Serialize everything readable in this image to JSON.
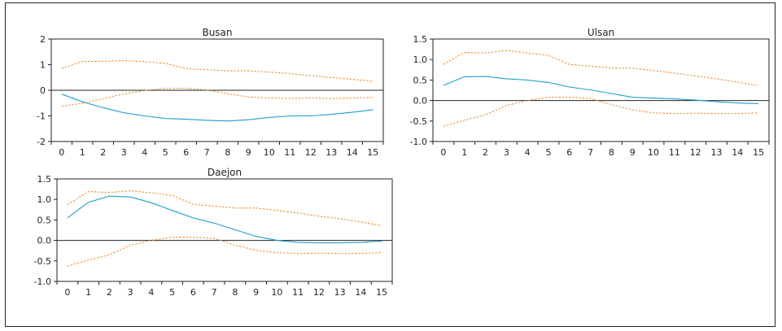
{
  "colors": {
    "mean_line": "#1a9fd0",
    "band_line": "#ef8a2b",
    "axis": "#222222",
    "zero_line": "#222222"
  },
  "chart_data": [
    {
      "type": "line",
      "title": "Busan",
      "x": [
        0,
        1,
        2,
        3,
        4,
        5,
        6,
        7,
        8,
        9,
        10,
        11,
        12,
        13,
        14,
        15
      ],
      "ylim": [
        -2,
        2
      ],
      "yticks": [
        -2,
        -1,
        0,
        1,
        2
      ],
      "ytick_labels": [
        "-2",
        "-1",
        "0",
        "1",
        "2"
      ],
      "xticks": [
        "0",
        "1",
        "2",
        "3",
        "4",
        "5",
        "6",
        "7",
        "8",
        "9",
        "10",
        "11",
        "12",
        "13",
        "14",
        "15"
      ],
      "zero_line": true,
      "series": [
        {
          "role": "mean",
          "values": [
            -0.15,
            -0.45,
            -0.68,
            -0.88,
            -1.0,
            -1.1,
            -1.13,
            -1.17,
            -1.2,
            -1.15,
            -1.06,
            -1.0,
            -1.0,
            -0.94,
            -0.86,
            -0.76
          ]
        },
        {
          "role": "upper",
          "values": [
            0.85,
            1.13,
            1.13,
            1.16,
            1.12,
            1.05,
            0.84,
            0.8,
            0.76,
            0.76,
            0.71,
            0.65,
            0.57,
            0.5,
            0.43,
            0.35
          ]
        },
        {
          "role": "lower",
          "values": [
            -0.63,
            -0.5,
            -0.33,
            -0.14,
            -0.01,
            0.08,
            0.08,
            0.01,
            -0.14,
            -0.26,
            -0.3,
            -0.32,
            -0.3,
            -0.32,
            -0.3,
            -0.28
          ]
        }
      ]
    },
    {
      "type": "line",
      "title": "Ulsan",
      "x": [
        0,
        1,
        2,
        3,
        4,
        5,
        6,
        7,
        8,
        9,
        10,
        11,
        12,
        13,
        14,
        15
      ],
      "ylim": [
        -1.0,
        1.5
      ],
      "yticks": [
        -1.0,
        -0.5,
        0.0,
        0.5,
        1.0,
        1.5
      ],
      "ytick_labels": [
        "-1.0",
        "-0.5",
        "0.0",
        "0.5",
        "1.0",
        "1.5"
      ],
      "xticks": [
        "0",
        "1",
        "2",
        "3",
        "4",
        "5",
        "6",
        "7",
        "8",
        "9",
        "10",
        "11",
        "12",
        "13",
        "14",
        "15"
      ],
      "zero_line": true,
      "series": [
        {
          "role": "mean",
          "values": [
            0.37,
            0.58,
            0.59,
            0.53,
            0.5,
            0.44,
            0.33,
            0.26,
            0.17,
            0.08,
            0.06,
            0.04,
            0.01,
            -0.03,
            -0.06,
            -0.08
          ]
        },
        {
          "role": "upper",
          "values": [
            0.88,
            1.17,
            1.16,
            1.22,
            1.16,
            1.1,
            0.88,
            0.84,
            0.79,
            0.79,
            0.73,
            0.67,
            0.6,
            0.53,
            0.45,
            0.36
          ]
        },
        {
          "role": "lower",
          "values": [
            -0.63,
            -0.48,
            -0.35,
            -0.12,
            0.0,
            0.08,
            0.08,
            0.05,
            -0.1,
            -0.23,
            -0.3,
            -0.32,
            -0.31,
            -0.32,
            -0.32,
            -0.3
          ]
        }
      ]
    },
    {
      "type": "line",
      "title": "Daejon",
      "x": [
        0,
        1,
        2,
        3,
        4,
        5,
        6,
        7,
        8,
        9,
        10,
        11,
        12,
        13,
        14,
        15
      ],
      "ylim": [
        -1.0,
        1.5
      ],
      "yticks": [
        -1.0,
        -0.5,
        0.0,
        0.5,
        1.0,
        1.5
      ],
      "ytick_labels": [
        "-1.0",
        "-0.5",
        "0.0",
        "0.5",
        "1.0",
        "1.5"
      ],
      "xticks": [
        "0",
        "1",
        "2",
        "3",
        "4",
        "5",
        "6",
        "7",
        "8",
        "9",
        "10",
        "11",
        "12",
        "13",
        "14",
        "15"
      ],
      "zero_line": true,
      "series": [
        {
          "role": "mean",
          "values": [
            0.55,
            0.93,
            1.08,
            1.06,
            0.92,
            0.73,
            0.55,
            0.42,
            0.26,
            0.1,
            0.0,
            -0.05,
            -0.06,
            -0.06,
            -0.05,
            -0.02
          ]
        },
        {
          "role": "upper",
          "values": [
            0.87,
            1.19,
            1.17,
            1.21,
            1.16,
            1.1,
            0.88,
            0.84,
            0.79,
            0.79,
            0.73,
            0.67,
            0.59,
            0.53,
            0.45,
            0.36
          ]
        },
        {
          "role": "lower",
          "values": [
            -0.63,
            -0.48,
            -0.35,
            -0.12,
            0.0,
            0.08,
            0.08,
            0.05,
            -0.12,
            -0.24,
            -0.3,
            -0.32,
            -0.31,
            -0.32,
            -0.32,
            -0.3
          ]
        }
      ]
    }
  ]
}
